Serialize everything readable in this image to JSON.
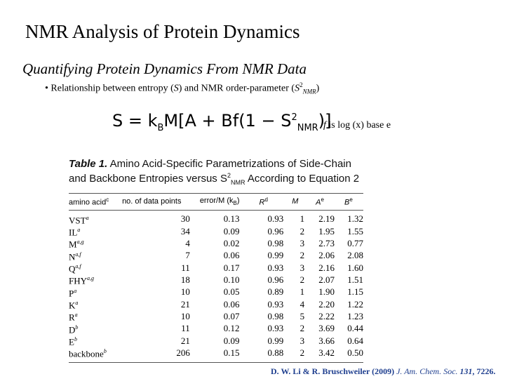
{
  "slide": {
    "title": "NMR Analysis of Protein Dynamics",
    "subtitle": "Quantifying Protein Dynamics From NMR Data",
    "bullet": {
      "marker": "•",
      "text_prefix": "Relationship between entropy (",
      "S_symbol": "S",
      "text_mid": ") and NMR order-parameter (",
      "order_symbol": "S",
      "order_sup": "2",
      "order_sub": "NMR",
      "text_suffix": ")"
    },
    "equation": {
      "lhs": "S = k",
      "k_sub": "B",
      "body": "M[A + Bf(1 − S",
      "s_sup": "2",
      "s_sub": "NMR",
      "close": ")]"
    },
    "equation_note": {
      "f_symbol": "f",
      "text": " is log (x) base e"
    }
  },
  "table": {
    "caption_label": "Table 1.",
    "caption_text_1": " Amino Acid-Specific Parametrizations of Side-Chain and Backbone Entropies versus S",
    "caption_sup": "2",
    "caption_sub": "NMR",
    "caption_text_2": " According to Equation 2",
    "headers": {
      "amino_acid": "amino acid",
      "amino_acid_sup": "c",
      "n_points": "no. of data points",
      "error": "error/M (k",
      "error_sub": "B",
      "error_close": ")",
      "r2": "R",
      "r2_sup": "d",
      "m": "M",
      "a": "A",
      "a_sup": "e",
      "b": "B",
      "b_sup": "e"
    },
    "rows": [
      {
        "aa": "VST",
        "sup": "a",
        "n": "30",
        "err": "0.13",
        "r2": "0.93",
        "m": "1",
        "a": "2.19",
        "b": "1.32"
      },
      {
        "aa": "IL",
        "sup": "a",
        "n": "34",
        "err": "0.09",
        "r2": "0.96",
        "m": "2",
        "a": "1.95",
        "b": "1.55"
      },
      {
        "aa": "M",
        "sup": "a,g",
        "n": "4",
        "err": "0.02",
        "r2": "0.98",
        "m": "3",
        "a": "2.73",
        "b": "0.77"
      },
      {
        "aa": "N",
        "sup": "a,f",
        "n": "7",
        "err": "0.06",
        "r2": "0.99",
        "m": "2",
        "a": "2.06",
        "b": "2.08"
      },
      {
        "aa": "Q",
        "sup": "a,f",
        "n": "11",
        "err": "0.17",
        "r2": "0.93",
        "m": "3",
        "a": "2.16",
        "b": "1.60"
      },
      {
        "aa": "FHY",
        "sup": "a,g",
        "n": "18",
        "err": "0.10",
        "r2": "0.96",
        "m": "2",
        "a": "2.07",
        "b": "1.51"
      },
      {
        "aa": "P",
        "sup": "a",
        "n": "10",
        "err": "0.05",
        "r2": "0.89",
        "m": "1",
        "a": "1.90",
        "b": "1.15"
      },
      {
        "aa": "K",
        "sup": "a",
        "n": "21",
        "err": "0.06",
        "r2": "0.93",
        "m": "4",
        "a": "2.20",
        "b": "1.22"
      },
      {
        "aa": "R",
        "sup": "a",
        "n": "10",
        "err": "0.07",
        "r2": "0.98",
        "m": "5",
        "a": "2.22",
        "b": "1.23"
      },
      {
        "aa": "D",
        "sup": "b",
        "n": "11",
        "err": "0.12",
        "r2": "0.93",
        "m": "2",
        "a": "3.69",
        "b": "0.44"
      },
      {
        "aa": "E",
        "sup": "b",
        "n": "21",
        "err": "0.09",
        "r2": "0.99",
        "m": "3",
        "a": "3.66",
        "b": "0.64"
      },
      {
        "aa": "backbone",
        "sup": "b",
        "n": "206",
        "err": "0.15",
        "r2": "0.88",
        "m": "2",
        "a": "3.42",
        "b": "0.50"
      }
    ]
  },
  "citation": {
    "authors": "D. W. Li & R. Bruschweiler (2009)",
    "journal": " J. Am. Chem. Soc.",
    "volume": " 131",
    "pages": ", 7226."
  }
}
